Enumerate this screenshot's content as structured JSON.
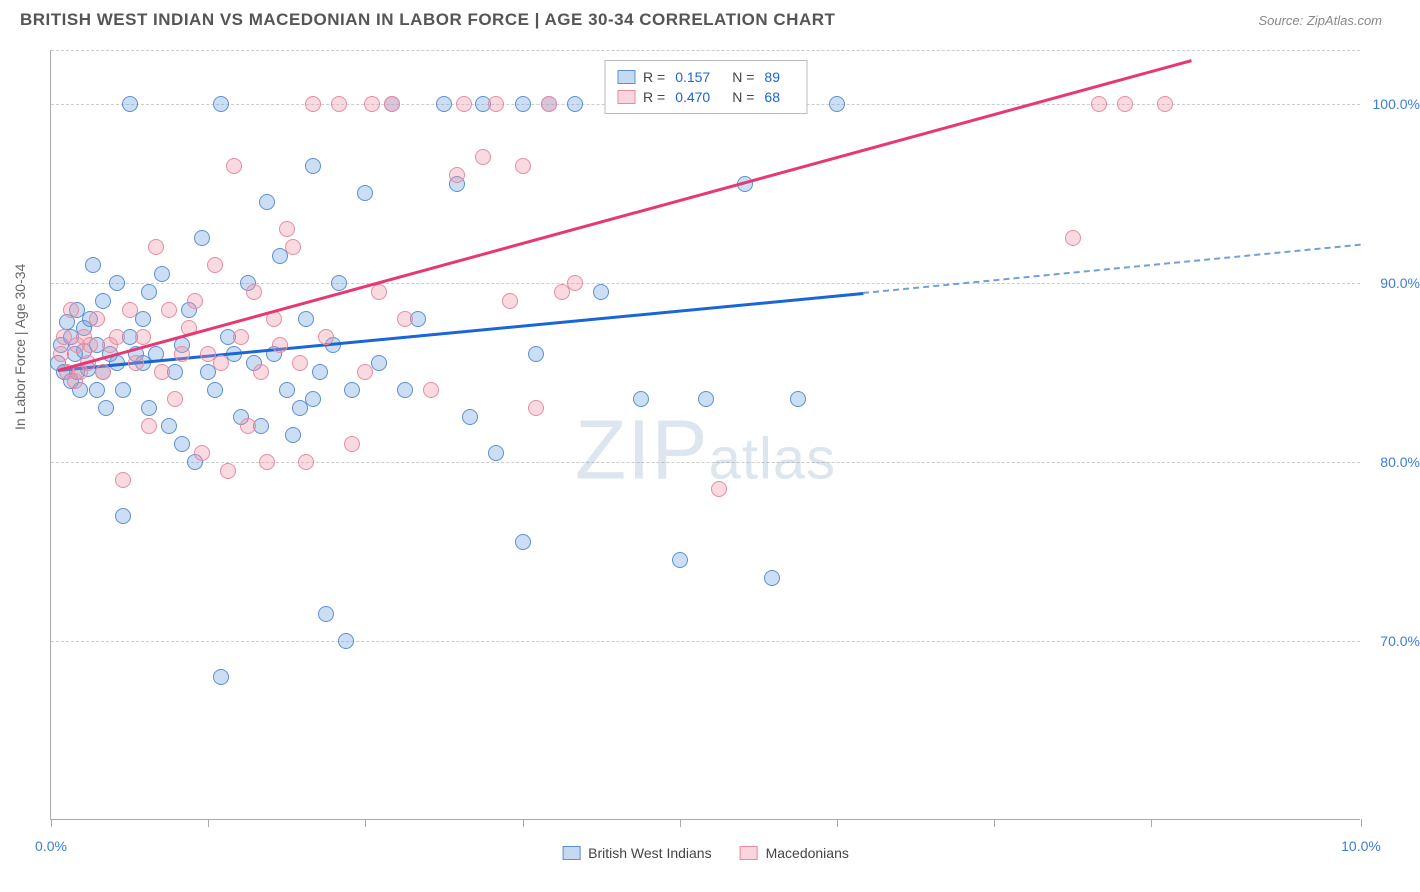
{
  "header": {
    "title": "BRITISH WEST INDIAN VS MACEDONIAN IN LABOR FORCE | AGE 30-34 CORRELATION CHART",
    "source": "Source: ZipAtlas.com"
  },
  "watermark": {
    "brand_z": "ZIP",
    "brand_rest": "atlas"
  },
  "chart": {
    "type": "scatter",
    "ylabel": "In Labor Force | Age 30-34",
    "background_color": "#ffffff",
    "grid_color": "#cccccc",
    "axis_color": "#aaaaaa",
    "label_color": "#3b7ddd",
    "text_color": "#666666",
    "label_fontsize": 14,
    "title_fontsize": 17,
    "marker_size": 16,
    "line_width": 2.5,
    "xlim": [
      0,
      10
    ],
    "ylim": [
      60,
      103
    ],
    "xticks": [
      0,
      1.2,
      2.4,
      3.6,
      4.8,
      6.0,
      7.2,
      8.4,
      10.0
    ],
    "xtick_labels": {
      "0": "0.0%",
      "10": "10.0%"
    },
    "yticks": [
      70,
      80,
      90,
      100
    ],
    "ytick_labels": {
      "70": "70.0%",
      "80": "80.0%",
      "90": "90.0%",
      "100": "100.0%"
    },
    "series": [
      {
        "name": "British West Indians",
        "color_fill": "rgba(110,160,220,0.35)",
        "color_stroke": "#5b8fd6",
        "line_color": "#1a66d6",
        "R": "0.157",
        "N": "89",
        "trend": {
          "x1": 0.05,
          "y1": 85.2,
          "x2": 6.2,
          "y2": 89.5,
          "dash_x2": 10.0,
          "dash_y2": 92.2
        },
        "points": [
          [
            0.05,
            85.5
          ],
          [
            0.08,
            86.5
          ],
          [
            0.1,
            85.0
          ],
          [
            0.12,
            87.8
          ],
          [
            0.15,
            84.5
          ],
          [
            0.15,
            87.0
          ],
          [
            0.18,
            86.0
          ],
          [
            0.2,
            85.0
          ],
          [
            0.2,
            88.5
          ],
          [
            0.22,
            84.0
          ],
          [
            0.25,
            87.5
          ],
          [
            0.25,
            86.2
          ],
          [
            0.28,
            85.2
          ],
          [
            0.3,
            88.0
          ],
          [
            0.32,
            91.0
          ],
          [
            0.35,
            86.5
          ],
          [
            0.35,
            84.0
          ],
          [
            0.4,
            85.0
          ],
          [
            0.4,
            89.0
          ],
          [
            0.42,
            83.0
          ],
          [
            0.45,
            86.0
          ],
          [
            0.5,
            90.0
          ],
          [
            0.5,
            85.5
          ],
          [
            0.55,
            84.0
          ],
          [
            0.55,
            77.0
          ],
          [
            0.6,
            100.0
          ],
          [
            0.6,
            87.0
          ],
          [
            0.65,
            86.0
          ],
          [
            0.7,
            88.0
          ],
          [
            0.7,
            85.5
          ],
          [
            0.75,
            89.5
          ],
          [
            0.75,
            83.0
          ],
          [
            0.8,
            86.0
          ],
          [
            0.85,
            90.5
          ],
          [
            0.9,
            82.0
          ],
          [
            0.95,
            85.0
          ],
          [
            1.0,
            81.0
          ],
          [
            1.0,
            86.5
          ],
          [
            1.05,
            88.5
          ],
          [
            1.1,
            80.0
          ],
          [
            1.15,
            92.5
          ],
          [
            1.2,
            85.0
          ],
          [
            1.25,
            84.0
          ],
          [
            1.3,
            100.0
          ],
          [
            1.3,
            68.0
          ],
          [
            1.35,
            87.0
          ],
          [
            1.4,
            86.0
          ],
          [
            1.45,
            82.5
          ],
          [
            1.5,
            90.0
          ],
          [
            1.55,
            85.5
          ],
          [
            1.6,
            82.0
          ],
          [
            1.65,
            94.5
          ],
          [
            1.7,
            86.0
          ],
          [
            1.75,
            91.5
          ],
          [
            1.8,
            84.0
          ],
          [
            1.85,
            81.5
          ],
          [
            1.9,
            83.0
          ],
          [
            1.95,
            88.0
          ],
          [
            2.0,
            96.5
          ],
          [
            2.0,
            83.5
          ],
          [
            2.05,
            85.0
          ],
          [
            2.1,
            71.5
          ],
          [
            2.15,
            86.5
          ],
          [
            2.2,
            90.0
          ],
          [
            2.25,
            70.0
          ],
          [
            2.3,
            84.0
          ],
          [
            2.4,
            95.0
          ],
          [
            2.5,
            85.5
          ],
          [
            2.6,
            100.0
          ],
          [
            2.7,
            84.0
          ],
          [
            2.8,
            88.0
          ],
          [
            3.0,
            100.0
          ],
          [
            3.1,
            95.5
          ],
          [
            3.2,
            82.5
          ],
          [
            3.3,
            100.0
          ],
          [
            3.4,
            80.5
          ],
          [
            3.6,
            100.0
          ],
          [
            3.6,
            75.5
          ],
          [
            3.7,
            86.0
          ],
          [
            3.8,
            100.0
          ],
          [
            4.0,
            100.0
          ],
          [
            4.2,
            89.5
          ],
          [
            4.5,
            83.5
          ],
          [
            4.8,
            74.5
          ],
          [
            5.0,
            83.5
          ],
          [
            5.3,
            95.5
          ],
          [
            5.5,
            73.5
          ],
          [
            5.7,
            83.5
          ],
          [
            6.0,
            100.0
          ]
        ]
      },
      {
        "name": "Macedonians",
        "color_fill": "rgba(240,150,170,0.35)",
        "color_stroke": "#e88ba0",
        "line_color": "#e63973",
        "R": "0.470",
        "N": "68",
        "trend": {
          "x1": 0.05,
          "y1": 85.2,
          "x2": 8.7,
          "y2": 102.5
        },
        "points": [
          [
            0.08,
            86.0
          ],
          [
            0.1,
            87.0
          ],
          [
            0.12,
            85.0
          ],
          [
            0.15,
            88.5
          ],
          [
            0.18,
            84.5
          ],
          [
            0.2,
            86.5
          ],
          [
            0.22,
            85.0
          ],
          [
            0.25,
            87.0
          ],
          [
            0.28,
            85.5
          ],
          [
            0.3,
            86.5
          ],
          [
            0.35,
            88.0
          ],
          [
            0.4,
            85.0
          ],
          [
            0.45,
            86.5
          ],
          [
            0.5,
            87.0
          ],
          [
            0.55,
            79.0
          ],
          [
            0.6,
            88.5
          ],
          [
            0.65,
            85.5
          ],
          [
            0.7,
            87.0
          ],
          [
            0.75,
            82.0
          ],
          [
            0.8,
            92.0
          ],
          [
            0.85,
            85.0
          ],
          [
            0.9,
            88.5
          ],
          [
            0.95,
            83.5
          ],
          [
            1.0,
            86.0
          ],
          [
            1.05,
            87.5
          ],
          [
            1.1,
            89.0
          ],
          [
            1.15,
            80.5
          ],
          [
            1.2,
            86.0
          ],
          [
            1.25,
            91.0
          ],
          [
            1.3,
            85.5
          ],
          [
            1.35,
            79.5
          ],
          [
            1.4,
            96.5
          ],
          [
            1.45,
            87.0
          ],
          [
            1.5,
            82.0
          ],
          [
            1.55,
            89.5
          ],
          [
            1.6,
            85.0
          ],
          [
            1.65,
            80.0
          ],
          [
            1.7,
            88.0
          ],
          [
            1.75,
            86.5
          ],
          [
            1.8,
            93.0
          ],
          [
            1.85,
            92.0
          ],
          [
            1.9,
            85.5
          ],
          [
            1.95,
            80.0
          ],
          [
            2.0,
            100.0
          ],
          [
            2.1,
            87.0
          ],
          [
            2.2,
            100.0
          ],
          [
            2.3,
            81.0
          ],
          [
            2.4,
            85.0
          ],
          [
            2.45,
            100.0
          ],
          [
            2.5,
            89.5
          ],
          [
            2.6,
            100.0
          ],
          [
            2.7,
            88.0
          ],
          [
            2.9,
            84.0
          ],
          [
            3.1,
            96.0
          ],
          [
            3.15,
            100.0
          ],
          [
            3.3,
            97.0
          ],
          [
            3.4,
            100.0
          ],
          [
            3.5,
            89.0
          ],
          [
            3.6,
            96.5
          ],
          [
            3.7,
            83.0
          ],
          [
            3.8,
            100.0
          ],
          [
            3.9,
            89.5
          ],
          [
            4.0,
            90.0
          ],
          [
            5.1,
            78.5
          ],
          [
            7.8,
            92.5
          ],
          [
            8.0,
            100.0
          ],
          [
            8.2,
            100.0
          ],
          [
            8.5,
            100.0
          ]
        ]
      }
    ]
  },
  "legend_top": {
    "rows": [
      {
        "r_label": "R =",
        "r_val": "0.157",
        "n_label": "N =",
        "n_val": "89"
      },
      {
        "r_label": "R =",
        "r_val": "0.470",
        "n_label": "N =",
        "n_val": "68"
      }
    ]
  },
  "legend_bottom": {
    "items": [
      {
        "label": "British West Indians"
      },
      {
        "label": "Macedonians"
      }
    ]
  }
}
